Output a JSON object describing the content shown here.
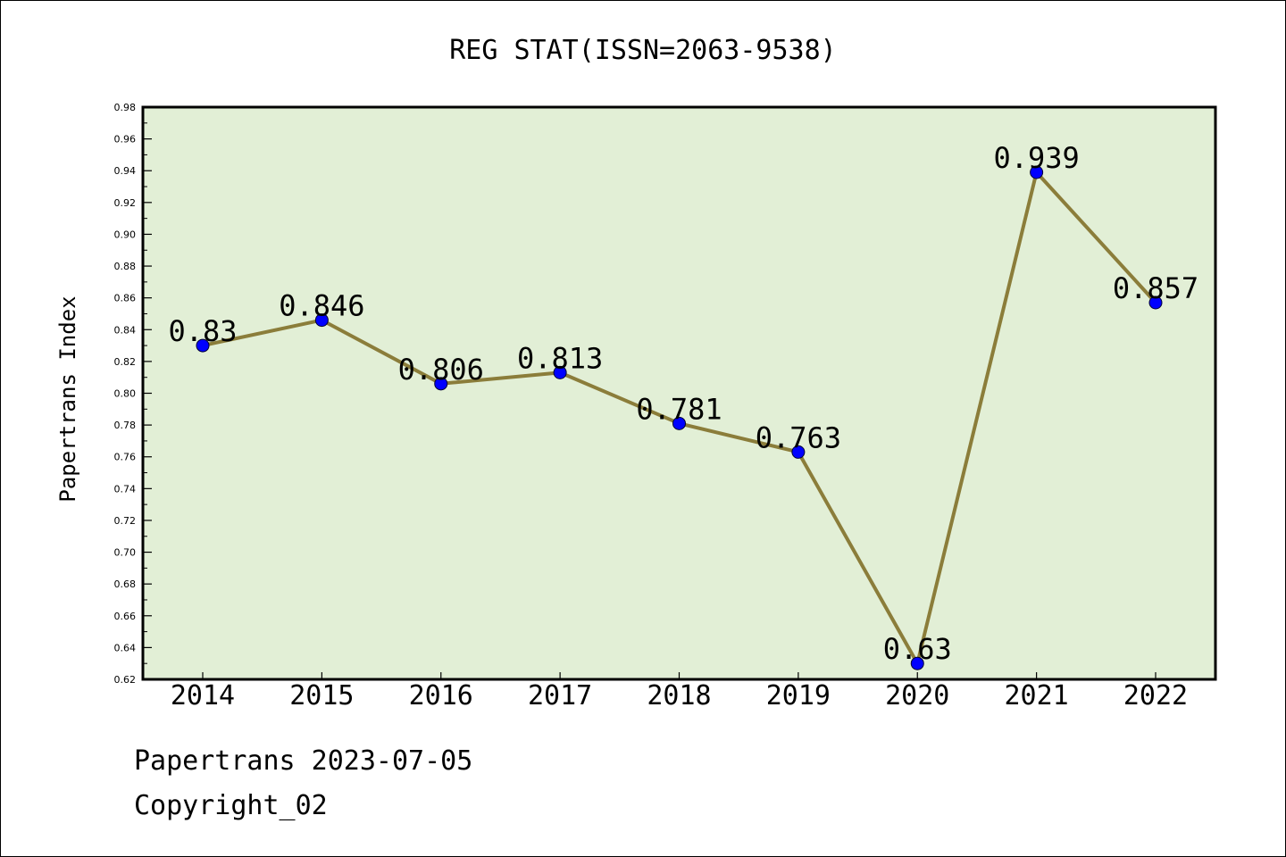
{
  "chart_data": {
    "type": "line",
    "title": "REG STAT(ISSN=2063-9538)",
    "ylabel": "Papertrans Index",
    "xlabel": "",
    "categories": [
      "2014",
      "2015",
      "2016",
      "2017",
      "2018",
      "2019",
      "2020",
      "2021",
      "2022"
    ],
    "values": [
      0.83,
      0.846,
      0.806,
      0.813,
      0.781,
      0.763,
      0.63,
      0.939,
      0.857
    ],
    "data_labels": [
      "0.83",
      "0.846",
      "0.806",
      "0.813",
      "0.781",
      "0.763",
      "0.63",
      "0.939",
      "0.857"
    ],
    "ylim": [
      0.62,
      0.98
    ],
    "yticks": [
      "0.62",
      "0.64",
      "0.66",
      "0.68",
      "0.70",
      "0.72",
      "0.74",
      "0.76",
      "0.78",
      "0.80",
      "0.82",
      "0.84",
      "0.86",
      "0.88",
      "0.90",
      "0.92",
      "0.94",
      "0.96",
      "0.98"
    ],
    "grid": false,
    "line_color": "#8b7d3a",
    "marker_color": "#0000ff",
    "plot_background": "#e2efd6"
  },
  "footer": {
    "source": "Papertrans 2023-07-05",
    "copyright": "Copyright_02"
  }
}
